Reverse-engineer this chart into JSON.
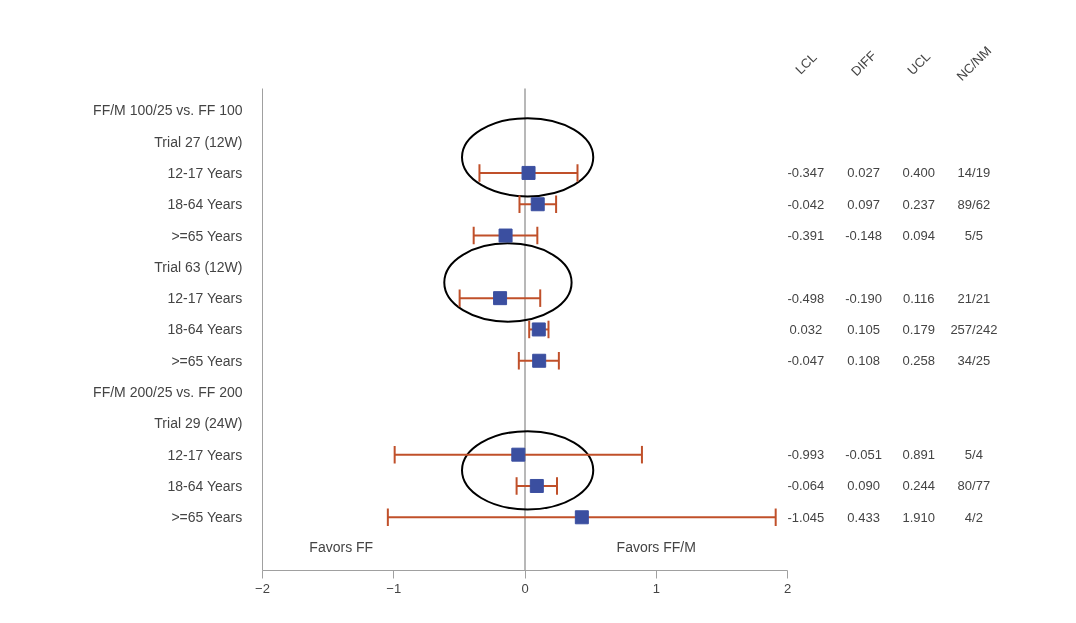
{
  "chart_data": {
    "type": "scatter",
    "orientation": "horizontal",
    "categories": [
      "FF/M 100/25 vs. FF 100",
      "Trial 27 (12W)",
      "12-17 Years",
      "18-64 Years",
      ">=65 Years",
      "Trial 63 (12W)",
      "12-17 Years",
      "18-64 Years",
      ">=65 Years",
      "FF/M 200/25 vs. FF 200",
      "Trial 29 (24W)",
      "12-17 Years",
      "18-64 Years",
      ">=65 Years"
    ],
    "series": [
      {
        "color": "#3b4fa0",
        "values": [
          null,
          null,
          0.027,
          0.097,
          -0.148,
          null,
          -0.19,
          0.105,
          0.108,
          null,
          null,
          -0.051,
          0.09,
          0.433
        ],
        "errors": [
          null,
          null,
          [
            -0.347,
            0.4
          ],
          [
            -0.042,
            0.237
          ],
          [
            -0.391,
            0.094
          ],
          null,
          [
            -0.498,
            0.116
          ],
          [
            0.032,
            0.179
          ],
          [
            -0.047,
            0.258
          ],
          null,
          null,
          [
            -0.993,
            0.891
          ],
          [
            -0.064,
            0.244
          ],
          [
            -1.045,
            1.91
          ]
        ],
        "value_labels": [
          null,
          null,
          "0.027",
          "0.097",
          "-0.148",
          null,
          "-0.190",
          "0.105",
          "0.108",
          null,
          null,
          "-0.051",
          "0.090",
          "0.433"
        ]
      }
    ],
    "xlim": [
      -2,
      2
    ],
    "xticks": [
      -2,
      -1,
      0,
      1,
      2
    ],
    "ref_lines": [
      {
        "axis": "x",
        "value": 0,
        "color": "#a0a0a0"
      }
    ],
    "marker": "square",
    "grid": false,
    "annotations": [
      "Favors FF",
      "Favors FF/M",
      "LCL",
      "DIFF",
      "UCL",
      "NC/NM",
      "-0.347",
      "0.400",
      "14/19",
      "-0.042",
      "0.237",
      "89/62",
      "-0.391",
      "0.094",
      "5/5",
      "-0.498",
      "0.116",
      "21/21",
      "0.032",
      "0.179",
      "257/242",
      "-0.047",
      "0.258",
      "34/25",
      "-0.993",
      "0.891",
      "5/4",
      "-0.064",
      "0.244",
      "80/77",
      "-1.045",
      "1.910",
      "4/2"
    ]
  }
}
